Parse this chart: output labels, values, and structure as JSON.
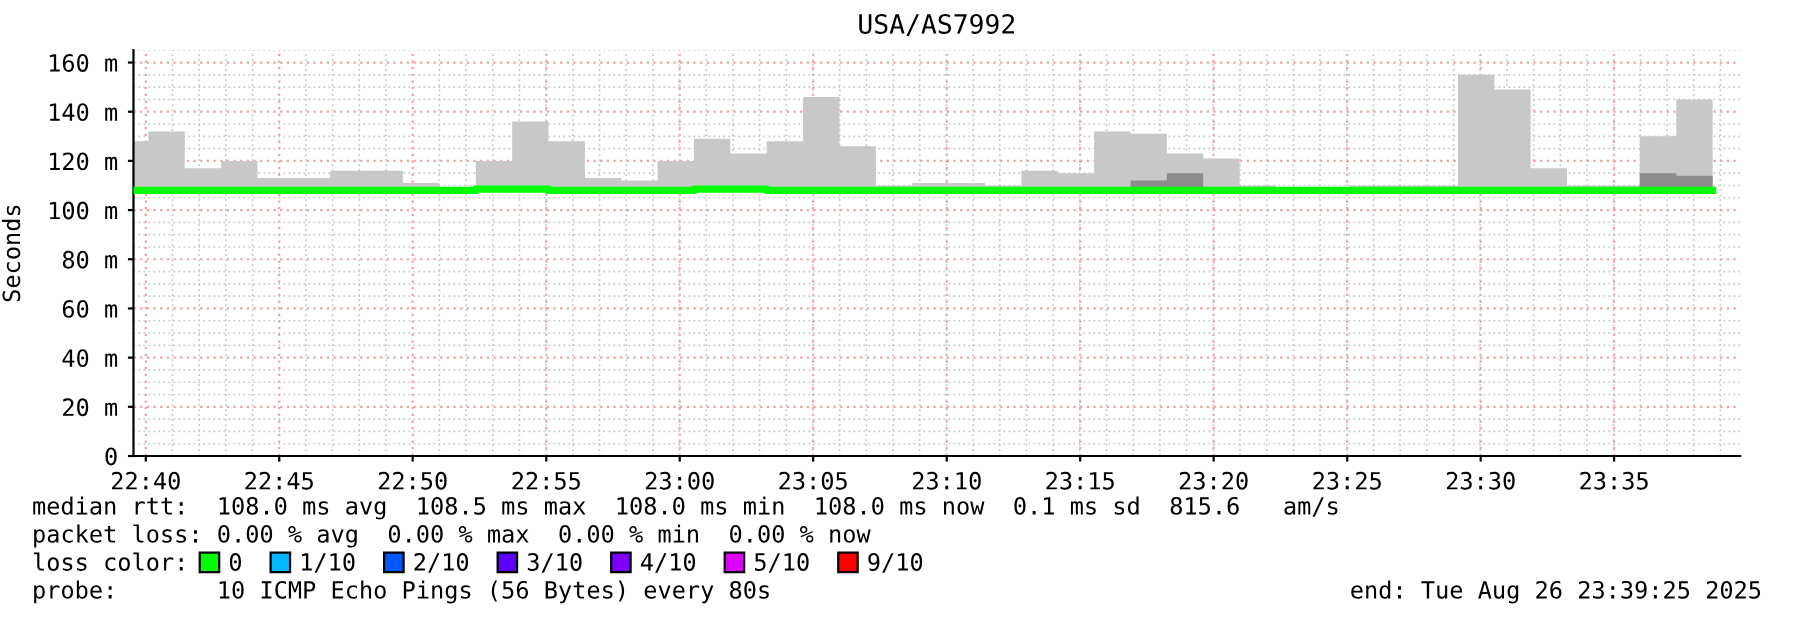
{
  "chart_data": {
    "type": "step",
    "title": "USA/AS7992",
    "ylabel": "Seconds",
    "legend_title": "loss color:",
    "legend": "bottom",
    "grid": true,
    "x": [
      22.659,
      22.6683,
      22.691,
      22.7137,
      22.7364,
      22.7591,
      22.7818,
      22.8045,
      22.8272,
      22.8499,
      22.8727,
      22.8954,
      22.9181,
      22.9408,
      22.9635,
      22.9862,
      23.0089,
      23.0316,
      23.0543,
      23.077,
      23.0997,
      23.1225,
      23.1452,
      23.1679,
      23.1906,
      23.2133,
      23.236,
      23.2587,
      23.2814,
      23.3041,
      23.3268,
      23.3495,
      23.3723,
      23.395,
      23.4177,
      23.4404,
      23.4631,
      23.4858,
      23.5085,
      23.5312,
      23.5539,
      23.5766,
      23.5993,
      23.6221,
      23.6448
    ],
    "series": [
      {
        "color": "#c8c8c8",
        "values": [
          null,
          null,
          null,
          null,
          null,
          null,
          null,
          null,
          null,
          null,
          null,
          null,
          null,
          null,
          null,
          null,
          null,
          null,
          null,
          null,
          null,
          null,
          null,
          null,
          null,
          null,
          null,
          null,
          null,
          null,
          null,
          null,
          null,
          null,
          null,
          null,
          null,
          null,
          null,
          null,
          null,
          null,
          null,
          null,
          null
        ],
        "lower": [
          108,
          108,
          108,
          108,
          108,
          108,
          108,
          108,
          108,
          108,
          108,
          108,
          108,
          108,
          108,
          108,
          108,
          108,
          108,
          108,
          108,
          108,
          108,
          108,
          108,
          108,
          108,
          108,
          108,
          108,
          108,
          108,
          108,
          108,
          108,
          108,
          108,
          108,
          108,
          108,
          108,
          108,
          108,
          108,
          108
        ],
        "upper": [
          128,
          132,
          117,
          120,
          113,
          113,
          116,
          116,
          111,
          109,
          120,
          136,
          128,
          113,
          112,
          120,
          129,
          123,
          128,
          146,
          126,
          110,
          111,
          111,
          110,
          116,
          115,
          132,
          131,
          123,
          121,
          110,
          109,
          109,
          110,
          110,
          110,
          155,
          149,
          117,
          110,
          110,
          130,
          145,
          145
        ]
      },
      {
        "color": "#8c8c8c",
        "values": [
          null,
          null,
          null,
          null,
          null,
          null,
          null,
          null,
          null,
          null,
          null,
          null,
          null,
          null,
          null,
          null,
          null,
          null,
          null,
          null,
          null,
          null,
          null,
          null,
          null,
          null,
          null,
          null,
          null,
          null,
          null,
          null,
          null,
          null,
          null,
          null,
          null,
          null,
          null,
          null,
          null,
          null,
          null,
          null,
          null
        ],
        "lower": [
          null,
          null,
          null,
          null,
          null,
          null,
          null,
          null,
          null,
          null,
          null,
          null,
          null,
          null,
          null,
          null,
          null,
          null,
          null,
          null,
          null,
          null,
          null,
          null,
          null,
          null,
          null,
          null,
          108,
          108,
          108,
          null,
          null,
          null,
          null,
          null,
          null,
          null,
          null,
          null,
          null,
          null,
          108,
          108,
          108
        ],
        "upper": [
          null,
          null,
          null,
          null,
          null,
          null,
          null,
          null,
          null,
          null,
          null,
          null,
          null,
          null,
          null,
          null,
          null,
          null,
          null,
          null,
          null,
          null,
          null,
          null,
          null,
          null,
          null,
          null,
          112,
          115,
          113,
          null,
          null,
          null,
          null,
          null,
          null,
          null,
          null,
          null,
          null,
          null,
          115,
          114,
          114
        ]
      },
      {
        "name": "0",
        "color": "#00ff00",
        "values": [
          108,
          108,
          108,
          108,
          108,
          108,
          108,
          108,
          108,
          108,
          108.5,
          108.5,
          108,
          108,
          108,
          108,
          108.5,
          108.5,
          108,
          108,
          108,
          108,
          108,
          108,
          108,
          108,
          108,
          108,
          108,
          108,
          108,
          108,
          108,
          108,
          108,
          108,
          108,
          108,
          108,
          108,
          108,
          108,
          108,
          108,
          108
        ]
      },
      {
        "name": "1/10",
        "color": "#00b8ff",
        "values": [
          null,
          null,
          null,
          null,
          null,
          null,
          null,
          null,
          null,
          null,
          null,
          null,
          null,
          null,
          null,
          null,
          null,
          null,
          null,
          null,
          null,
          null,
          null,
          null,
          null,
          null,
          null,
          null,
          null,
          null,
          null,
          null,
          null,
          null,
          null,
          null,
          null,
          null,
          null,
          null,
          null,
          null,
          null,
          null,
          null
        ]
      },
      {
        "name": "2/10",
        "color": "#0059ff",
        "values": [
          null,
          null,
          null,
          null,
          null,
          null,
          null,
          null,
          null,
          null,
          null,
          null,
          null,
          null,
          null,
          null,
          null,
          null,
          null,
          null,
          null,
          null,
          null,
          null,
          null,
          null,
          null,
          null,
          null,
          null,
          null,
          null,
          null,
          null,
          null,
          null,
          null,
          null,
          null,
          null,
          null,
          null,
          null,
          null,
          null
        ]
      },
      {
        "name": "3/10",
        "color": "#5e00ff",
        "values": [
          null,
          null,
          null,
          null,
          null,
          null,
          null,
          null,
          null,
          null,
          null,
          null,
          null,
          null,
          null,
          null,
          null,
          null,
          null,
          null,
          null,
          null,
          null,
          null,
          null,
          null,
          null,
          null,
          null,
          null,
          null,
          null,
          null,
          null,
          null,
          null,
          null,
          null,
          null,
          null,
          null,
          null,
          null,
          null,
          null
        ]
      },
      {
        "name": "4/10",
        "color": "#7e00ff",
        "values": [
          null,
          null,
          null,
          null,
          null,
          null,
          null,
          null,
          null,
          null,
          null,
          null,
          null,
          null,
          null,
          null,
          null,
          null,
          null,
          null,
          null,
          null,
          null,
          null,
          null,
          null,
          null,
          null,
          null,
          null,
          null,
          null,
          null,
          null,
          null,
          null,
          null,
          null,
          null,
          null,
          null,
          null,
          null,
          null,
          null
        ]
      },
      {
        "name": "5/10",
        "color": "#dd00ff",
        "values": [
          null,
          null,
          null,
          null,
          null,
          null,
          null,
          null,
          null,
          null,
          null,
          null,
          null,
          null,
          null,
          null,
          null,
          null,
          null,
          null,
          null,
          null,
          null,
          null,
          null,
          null,
          null,
          null,
          null,
          null,
          null,
          null,
          null,
          null,
          null,
          null,
          null,
          null,
          null,
          null,
          null,
          null,
          null,
          null,
          null
        ]
      },
      {
        "name": "9/10",
        "color": "#ff0000",
        "values": [
          null,
          null,
          null,
          null,
          null,
          null,
          null,
          null,
          null,
          null,
          null,
          null,
          null,
          null,
          null,
          null,
          null,
          null,
          null,
          null,
          null,
          null,
          null,
          null,
          null,
          null,
          null,
          null,
          null,
          null,
          null,
          null,
          null,
          null,
          null,
          null,
          null,
          null,
          null,
          null,
          null,
          null,
          null,
          null,
          null
        ]
      }
    ],
    "xlim": [
      22.659,
      23.662
    ],
    "xticks": [
      {
        "value": 22.6667,
        "label": "22:40"
      },
      {
        "value": 22.75,
        "label": "22:45"
      },
      {
        "value": 22.8333,
        "label": "22:50"
      },
      {
        "value": 22.9167,
        "label": "22:55"
      },
      {
        "value": 23.0,
        "label": "23:00"
      },
      {
        "value": 23.0833,
        "label": "23:05"
      },
      {
        "value": 23.1667,
        "label": "23:10"
      },
      {
        "value": 23.25,
        "label": "23:15"
      },
      {
        "value": 23.3333,
        "label": "23:20"
      },
      {
        "value": 23.4167,
        "label": "23:25"
      },
      {
        "value": 23.5,
        "label": "23:30"
      },
      {
        "value": 23.5833,
        "label": "23:35"
      }
    ],
    "ylim": [
      0,
      165
    ],
    "yticks": [
      0,
      {
        "value": 20,
        "label": "20 m"
      },
      {
        "value": 40,
        "label": "40 m"
      },
      {
        "value": 60,
        "label": "60 m"
      },
      {
        "value": 80,
        "label": "80 m"
      },
      {
        "value": 100,
        "label": "100 m"
      },
      {
        "value": 120,
        "label": "120 m"
      },
      {
        "value": 140,
        "label": "140 m"
      },
      {
        "value": 160,
        "label": "160 m"
      }
    ],
    "annotations": [
      "median rtt:  108.0 ms avg  108.5 ms max  108.0 ms min  108.0 ms now  0.1 ms sd  815.6   am/s",
      "packet loss: 0.00 % avg  0.00 % max  0.00 % min  0.00 % now",
      "probe:       10 ICMP Echo Pings (56 Bytes) every 80s",
      "end: Tue Aug 26 23:39:25 2025"
    ]
  }
}
